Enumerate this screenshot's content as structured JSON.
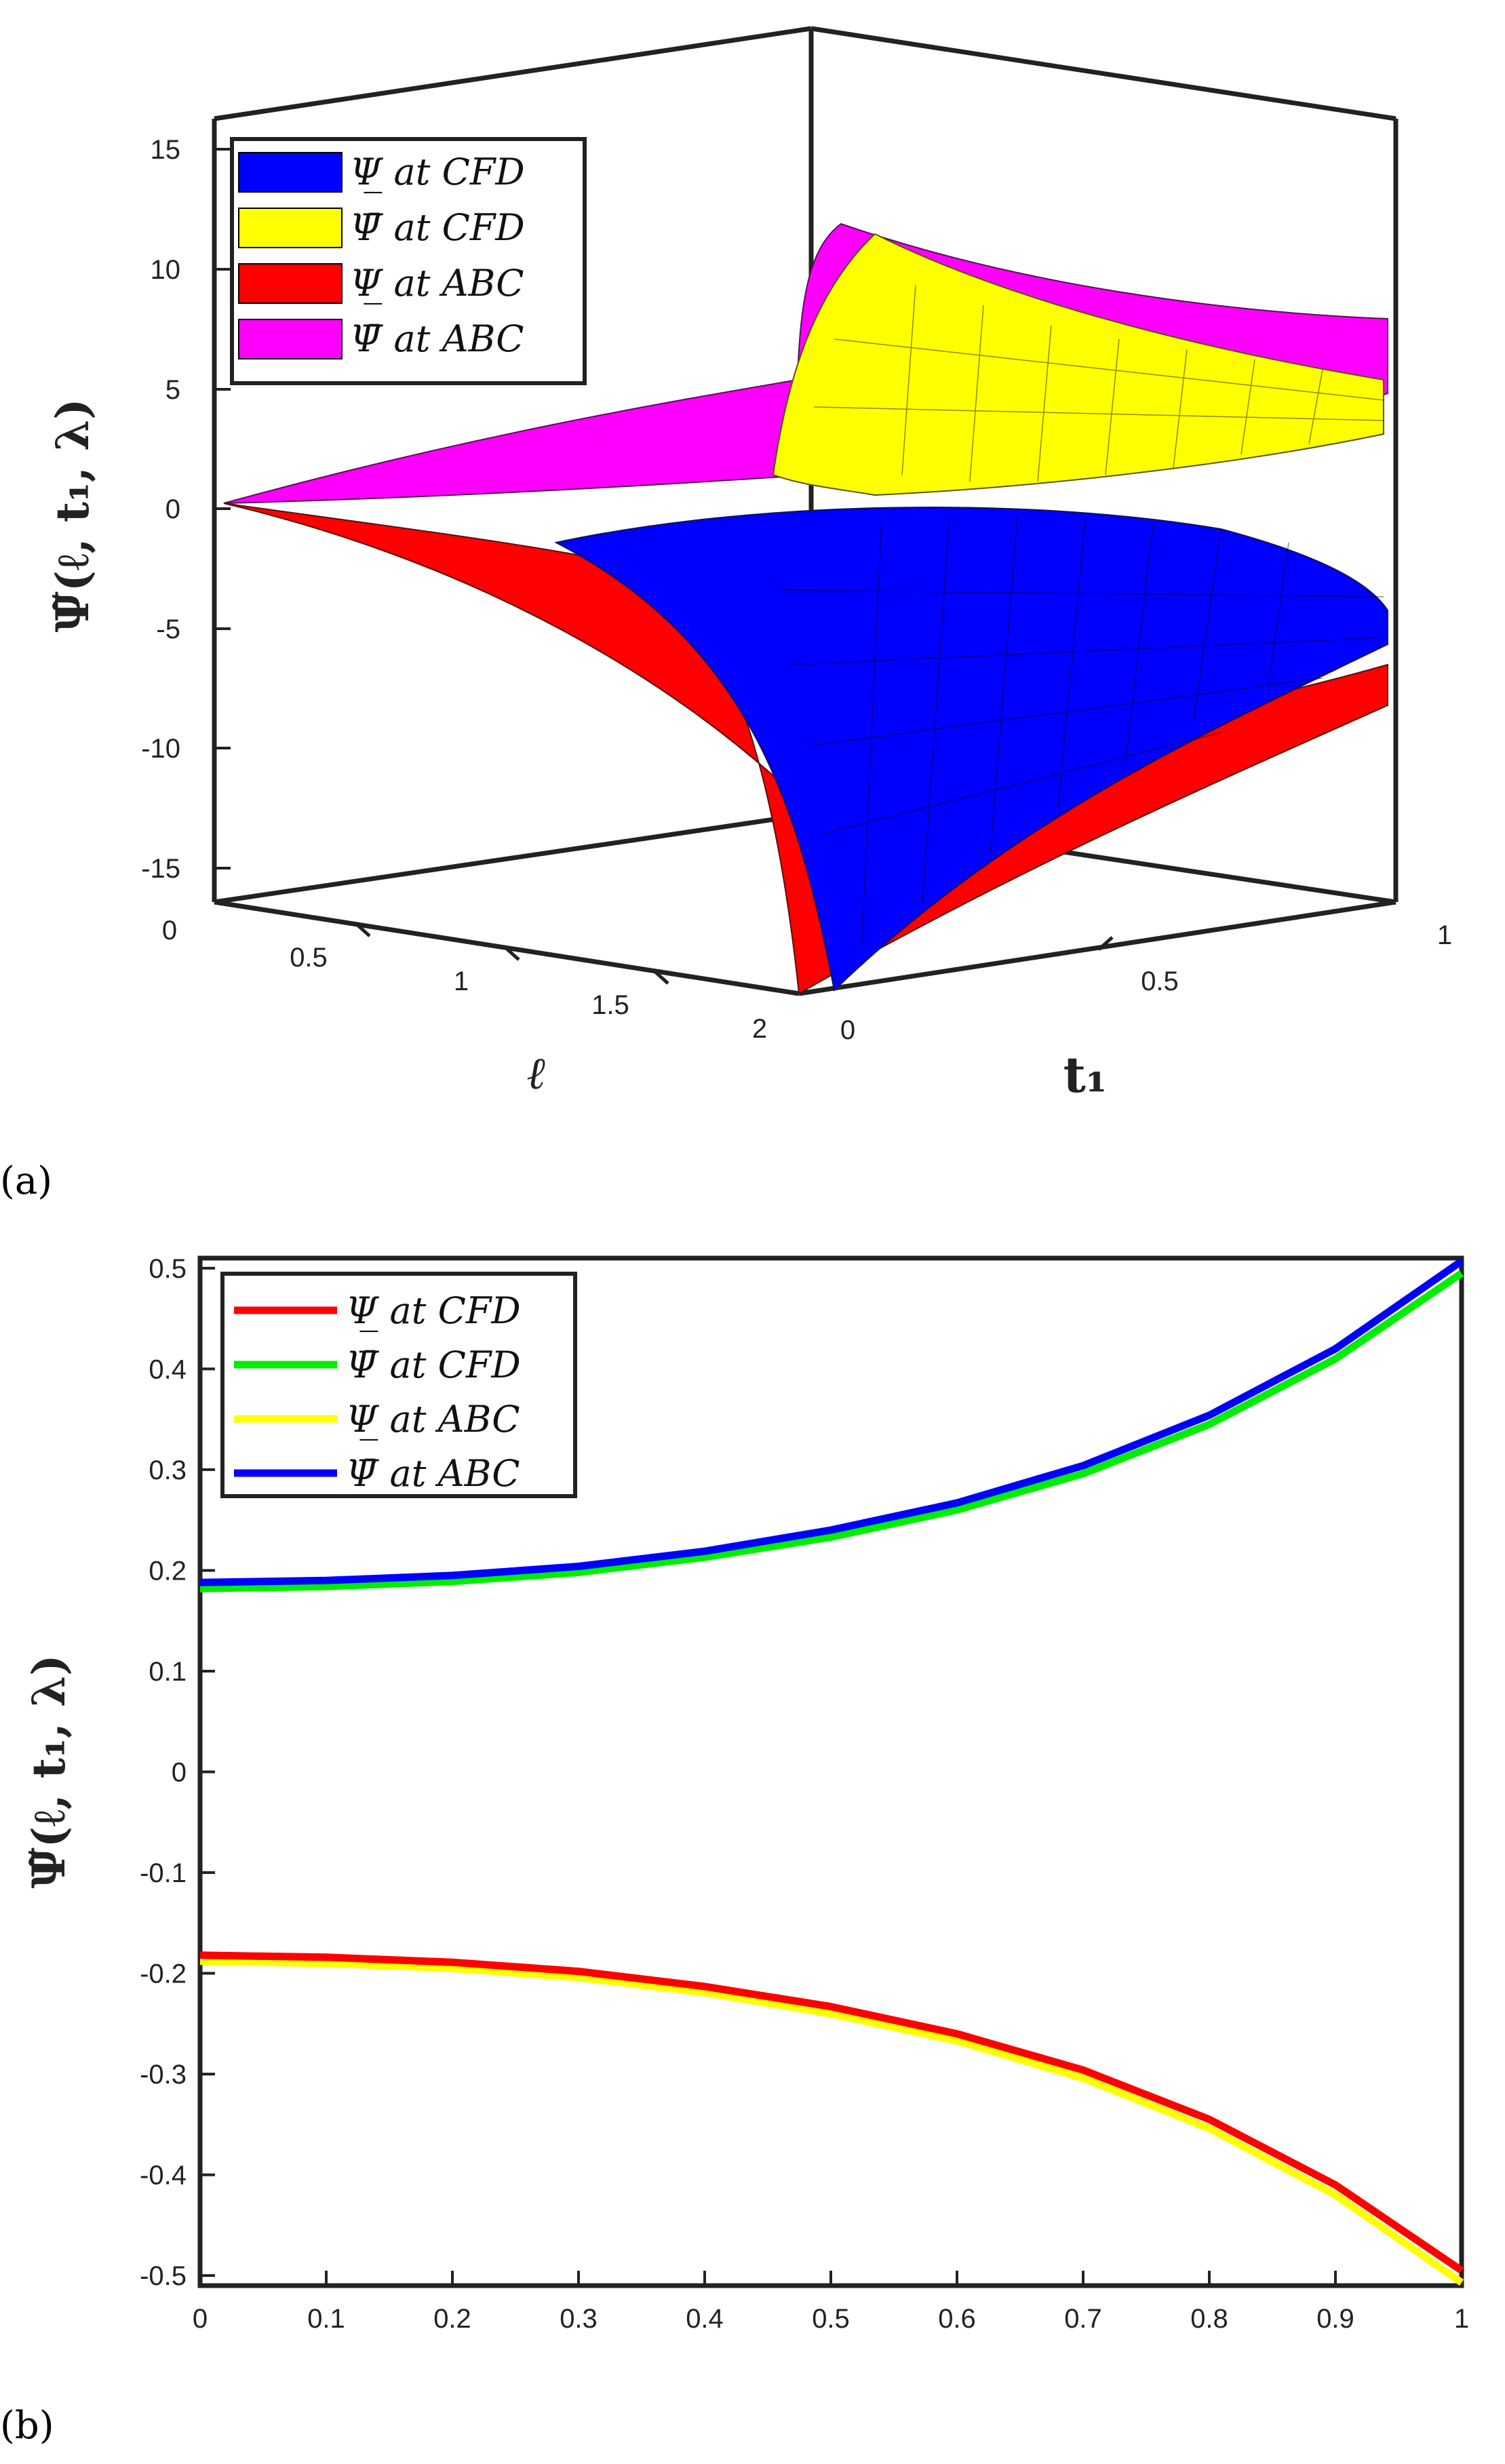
{
  "panels": {
    "a": {
      "label": "(a)"
    },
    "b": {
      "label": "(b)"
    }
  },
  "chart_data": [
    {
      "type": "surface",
      "panel": "a",
      "title": "",
      "xlabel": "ℓ",
      "ylabel": "t₁",
      "zlabel": "Ψ̃(ℓ, t₁, λ)",
      "x_ticks": [
        "0",
        "0.5",
        "1",
        "1.5",
        "2"
      ],
      "y_ticks": [
        "0",
        "0.5",
        "1"
      ],
      "z_ticks": [
        "15",
        "10",
        "5",
        "0",
        "-5",
        "-10",
        "-15"
      ],
      "zlim": [
        -15,
        15
      ],
      "legend": [
        {
          "label": "Ψ̲ at CFD",
          "color": "#0000ff"
        },
        {
          "label": "Ψ̄ at CFD",
          "color": "#ffff00"
        },
        {
          "label": "Ψ̲ at ABC",
          "color": "#ff0000"
        },
        {
          "label": "Ψ̄ at ABC",
          "color": "#ff00ff"
        }
      ]
    },
    {
      "type": "line",
      "panel": "b",
      "title": "",
      "xlabel": "",
      "ylabel": "Ψ̃(ℓ, t₁, λ)",
      "xlim": [
        0,
        1
      ],
      "ylim": [
        -0.51,
        0.51
      ],
      "x": [
        0,
        0.1,
        0.2,
        0.3,
        0.4,
        0.5,
        0.6,
        0.7,
        0.8,
        0.9,
        1.0
      ],
      "x_ticks": [
        "0",
        "0.1",
        "0.2",
        "0.3",
        "0.4",
        "0.5",
        "0.6",
        "0.7",
        "0.8",
        "0.9",
        "1"
      ],
      "y_ticks": [
        "0.5",
        "0.4",
        "0.3",
        "0.2",
        "0.1",
        "0",
        "-0.1",
        "-0.2",
        "-0.3",
        "-0.4",
        "-0.5"
      ],
      "series": [
        {
          "name": "Ψ̲ at CFD",
          "color": "#ff0000",
          "values": [
            -0.182,
            -0.184,
            -0.189,
            -0.198,
            -0.213,
            -0.233,
            -0.26,
            -0.296,
            -0.345,
            -0.41,
            -0.495
          ]
        },
        {
          "name": "Ψ̄ at CFD",
          "color": "#00ee00",
          "values": [
            0.182,
            0.184,
            0.189,
            0.198,
            0.213,
            0.233,
            0.26,
            0.296,
            0.345,
            0.41,
            0.495
          ]
        },
        {
          "name": "Ψ̲ at ABC",
          "color": "#ffff00",
          "values": [
            -0.188,
            -0.19,
            -0.195,
            -0.204,
            -0.219,
            -0.24,
            -0.267,
            -0.304,
            -0.354,
            -0.42,
            -0.507
          ]
        },
        {
          "name": "Ψ̄ at ABC",
          "color": "#0000ff",
          "values": [
            0.188,
            0.19,
            0.195,
            0.204,
            0.219,
            0.24,
            0.267,
            0.304,
            0.354,
            0.42,
            0.507
          ]
        }
      ]
    }
  ]
}
